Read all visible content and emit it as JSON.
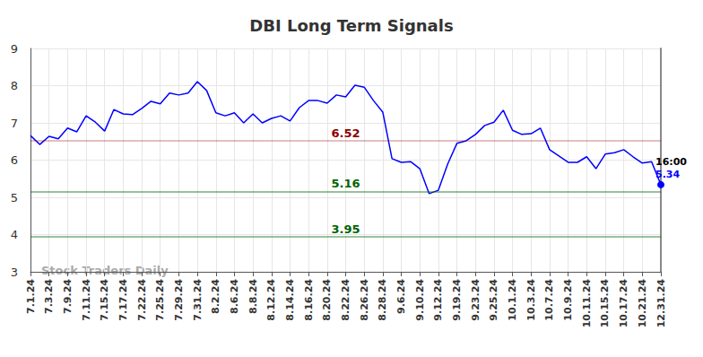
{
  "chart_data": {
    "type": "line",
    "title": "DBI Long Term Signals",
    "watermark": "Stock Traders Daily",
    "categories": [
      "7.1.24",
      null,
      "7.3.24",
      null,
      "7.9.24",
      null,
      "7.11.24",
      null,
      "7.15.24",
      null,
      "7.17.24",
      null,
      "7.22.24",
      null,
      "7.25.24",
      null,
      "7.29.24",
      null,
      "7.31.24",
      null,
      "8.2.24",
      null,
      "8.6.24",
      null,
      "8.8.24",
      null,
      "8.12.24",
      null,
      "8.14.24",
      null,
      "8.16.24",
      null,
      "8.20.24",
      null,
      "8.22.24",
      null,
      "8.26.24",
      null,
      "8.28.24",
      null,
      "9.6.24",
      null,
      "9.10.24",
      null,
      "9.12.24",
      null,
      "9.19.24",
      null,
      "9.23.24",
      null,
      "9.25.24",
      null,
      "10.1.24",
      null,
      "10.3.24",
      null,
      "10.7.24",
      null,
      "10.9.24",
      null,
      "10.11.24",
      null,
      "10.15.24",
      null,
      "10.17.24",
      null,
      "10.21.24",
      null,
      "12.31.24"
    ],
    "values": [
      6.66,
      6.42,
      6.64,
      6.57,
      6.86,
      6.76,
      7.19,
      7.02,
      6.78,
      7.36,
      7.24,
      7.22,
      7.39,
      7.58,
      7.51,
      7.8,
      7.75,
      7.8,
      8.11,
      7.87,
      7.27,
      7.19,
      7.27,
      7.0,
      7.24,
      7.0,
      7.12,
      7.19,
      7.05,
      7.41,
      7.6,
      7.6,
      7.53,
      7.75,
      7.7,
      8.01,
      7.96,
      7.6,
      7.29,
      6.04,
      5.94,
      5.96,
      5.77,
      5.1,
      5.19,
      5.89,
      6.45,
      6.52,
      6.69,
      6.93,
      7.02,
      7.34,
      6.8,
      6.69,
      6.71,
      6.86,
      6.28,
      6.11,
      5.94,
      5.94,
      6.09,
      5.77,
      6.16,
      6.2,
      6.28,
      6.09,
      5.92,
      5.96,
      5.34
    ],
    "color": "#0000ff",
    "last_point": {
      "time": "16:00",
      "value": 5.34
    },
    "reference_lines": [
      {
        "value": 6.52,
        "color": "#8b0000"
      },
      {
        "value": 5.16,
        "color": "#006400"
      },
      {
        "value": 3.95,
        "color": "#006400"
      }
    ],
    "ylim": [
      3,
      9
    ],
    "yticks": [
      3,
      4,
      5,
      6,
      7,
      8,
      9
    ],
    "grid": true
  }
}
